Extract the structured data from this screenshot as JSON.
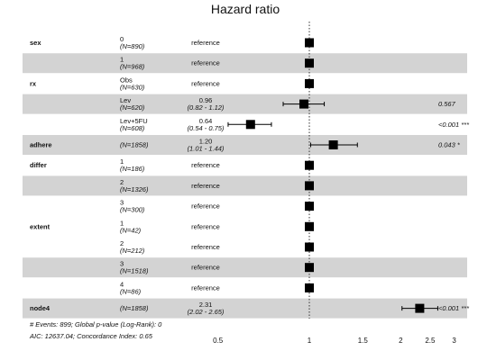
{
  "chart_data": {
    "type": "forest",
    "title": "Hazard ratio",
    "scale": "log",
    "xlim": [
      0.42,
      3.5
    ],
    "xticks": [
      {
        "value": 0.5,
        "label": "0.5"
      },
      {
        "value": 1,
        "label": "1"
      },
      {
        "value": 1.5,
        "label": "1.5"
      },
      {
        "value": 2,
        "label": "2"
      },
      {
        "value": 2.5,
        "label": "2.5"
      },
      {
        "value": 3,
        "label": "3"
      }
    ],
    "reference_line": 1,
    "rows": [
      {
        "variable": "sex",
        "level": "0",
        "n": "(N=890)",
        "reference": "reference",
        "hr": 1,
        "shaded": false
      },
      {
        "variable": "",
        "level": "1",
        "n": "(N=968)",
        "reference": "reference",
        "hr": 1,
        "shaded": true
      },
      {
        "variable": "rx",
        "level": "Obs",
        "n": "(N=630)",
        "reference": "reference",
        "hr": 1,
        "shaded": false
      },
      {
        "variable": "",
        "level": "Lev",
        "n": "(N=620)",
        "estimate": "0.96",
        "ci_text": "(0.82 - 1.12)",
        "hr": 0.96,
        "lo": 0.82,
        "hi": 1.12,
        "p": "0.567",
        "shaded": true
      },
      {
        "variable": "",
        "level": "Lev+5FU",
        "n": "(N=608)",
        "estimate": "0.64",
        "ci_text": "(0.54 - 0.75)",
        "hr": 0.64,
        "lo": 0.54,
        "hi": 0.75,
        "p": "<0.001 ***",
        "shaded": false
      },
      {
        "variable": "adhere",
        "level": "",
        "n": "(N=1858)",
        "estimate": "1.20",
        "ci_text": "(1.01 - 1.44)",
        "hr": 1.2,
        "lo": 1.01,
        "hi": 1.44,
        "p": "0.043 *",
        "shaded": true
      },
      {
        "variable": "differ",
        "level": "1",
        "n": "(N=186)",
        "reference": "reference",
        "hr": 1,
        "shaded": false
      },
      {
        "variable": "",
        "level": "2",
        "n": "(N=1326)",
        "reference": "reference",
        "hr": 1,
        "shaded": true
      },
      {
        "variable": "",
        "level": "3",
        "n": "(N=300)",
        "reference": "reference",
        "hr": 1,
        "shaded": false
      },
      {
        "variable": "extent",
        "level": "1",
        "n": "(N=42)",
        "reference": "reference",
        "hr": 1,
        "shaded": false
      },
      {
        "variable": "",
        "level": "2",
        "n": "(N=212)",
        "reference": "reference",
        "hr": 1,
        "shaded": false
      },
      {
        "variable": "",
        "level": "3",
        "n": "(N=1518)",
        "reference": "reference",
        "hr": 1,
        "shaded": true
      },
      {
        "variable": "",
        "level": "4",
        "n": "(N=86)",
        "reference": "reference",
        "hr": 1,
        "shaded": false
      },
      {
        "variable": "node4",
        "level": "",
        "n": "(N=1858)",
        "estimate": "2.31",
        "ci_text": "(2.02 - 2.65)",
        "hr": 2.31,
        "lo": 2.02,
        "hi": 2.65,
        "p": "<0.001 ***",
        "shaded": true
      }
    ],
    "footnotes": [
      "# Events: 899; Global p-value (Log-Rank): 0",
      "AIC: 12637.04; Concordance Index: 0.65"
    ]
  }
}
